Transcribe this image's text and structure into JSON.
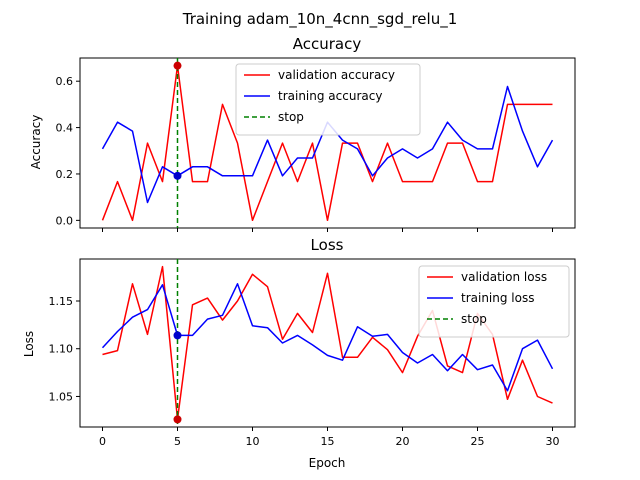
{
  "figure": {
    "suptitle": "Training adam_10n_4cnn_sgd_relu_1"
  },
  "chart_data": [
    {
      "type": "line",
      "title": "Accuracy",
      "xlabel": "",
      "ylabel": "Accuracy",
      "xlim": [
        -1.5,
        31.5
      ],
      "ylim": [
        -0.033,
        0.7
      ],
      "x_ticks": [
        0,
        5,
        10,
        15,
        20,
        25,
        30
      ],
      "x_ticklabels_visible": false,
      "y_ticks": [
        0.0,
        0.2,
        0.4,
        0.6
      ],
      "y_ticklabels": [
        "0.0",
        "0.2",
        "0.4",
        "0.6"
      ],
      "x": [
        0,
        1,
        2,
        3,
        4,
        5,
        6,
        7,
        8,
        9,
        10,
        11,
        12,
        13,
        14,
        15,
        16,
        17,
        18,
        19,
        20,
        21,
        22,
        23,
        24,
        25,
        26,
        27,
        28,
        29,
        30
      ],
      "series": [
        {
          "name": "validation accuracy",
          "color": "#ff0000",
          "values": [
            0.0,
            0.167,
            0.0,
            0.333,
            0.167,
            0.667,
            0.167,
            0.167,
            0.5,
            0.333,
            0.0,
            0.167,
            0.333,
            0.167,
            0.333,
            0.0,
            0.333,
            0.333,
            0.167,
            0.333,
            0.167,
            0.167,
            0.167,
            0.333,
            0.333,
            0.167,
            0.167,
            0.5,
            0.5,
            0.5,
            0.5
          ]
        },
        {
          "name": "training accuracy",
          "color": "#0000ff",
          "values": [
            0.308,
            0.423,
            0.385,
            0.077,
            0.231,
            0.192,
            0.231,
            0.231,
            0.192,
            0.192,
            0.192,
            0.346,
            0.192,
            0.269,
            0.269,
            0.423,
            0.346,
            0.308,
            0.192,
            0.269,
            0.308,
            0.269,
            0.308,
            0.423,
            0.346,
            0.308,
            0.308,
            0.577,
            0.385,
            0.231,
            0.346
          ]
        }
      ],
      "stop": {
        "name": "stop",
        "x": 5,
        "color": "#008000"
      },
      "markers": [
        {
          "x": 5,
          "y": 0.667,
          "color": "#cc0000"
        },
        {
          "x": 5,
          "y": 0.192,
          "color": "#0000cc"
        }
      ],
      "legend": {
        "position": "top-center"
      },
      "grid": false
    },
    {
      "type": "line",
      "title": "Loss",
      "xlabel": "Epoch",
      "ylabel": "Loss",
      "xlim": [
        -1.5,
        31.5
      ],
      "ylim": [
        1.018,
        1.194
      ],
      "x_ticks": [
        0,
        5,
        10,
        15,
        20,
        25,
        30
      ],
      "x_ticklabels": [
        "0",
        "5",
        "10",
        "15",
        "20",
        "25",
        "30"
      ],
      "y_ticks": [
        1.05,
        1.1,
        1.15
      ],
      "y_ticklabels": [
        "1.05",
        "1.10",
        "1.15"
      ],
      "x": [
        0,
        1,
        2,
        3,
        4,
        5,
        6,
        7,
        8,
        9,
        10,
        11,
        12,
        13,
        14,
        15,
        16,
        17,
        18,
        19,
        20,
        21,
        22,
        23,
        24,
        25,
        26,
        27,
        28,
        29,
        30
      ],
      "series": [
        {
          "name": "validation loss",
          "color": "#ff0000",
          "values": [
            1.094,
            1.098,
            1.168,
            1.115,
            1.186,
            1.026,
            1.146,
            1.153,
            1.13,
            1.15,
            1.178,
            1.165,
            1.11,
            1.137,
            1.117,
            1.179,
            1.091,
            1.091,
            1.112,
            1.099,
            1.075,
            1.113,
            1.14,
            1.082,
            1.075,
            1.137,
            1.115,
            1.047,
            1.088,
            1.05,
            1.043
          ]
        },
        {
          "name": "training loss",
          "color": "#0000ff",
          "values": [
            1.101,
            1.118,
            1.133,
            1.141,
            1.167,
            1.114,
            1.114,
            1.131,
            1.135,
            1.168,
            1.124,
            1.122,
            1.106,
            1.114,
            1.104,
            1.093,
            1.088,
            1.123,
            1.113,
            1.115,
            1.096,
            1.085,
            1.094,
            1.077,
            1.094,
            1.078,
            1.083,
            1.056,
            1.1,
            1.109,
            1.079
          ]
        }
      ],
      "stop": {
        "name": "stop",
        "x": 5,
        "color": "#008000"
      },
      "markers": [
        {
          "x": 5,
          "y": 1.026,
          "color": "#cc0000"
        },
        {
          "x": 5,
          "y": 1.114,
          "color": "#0000cc"
        }
      ],
      "legend": {
        "position": "top-right"
      },
      "grid": false
    }
  ]
}
